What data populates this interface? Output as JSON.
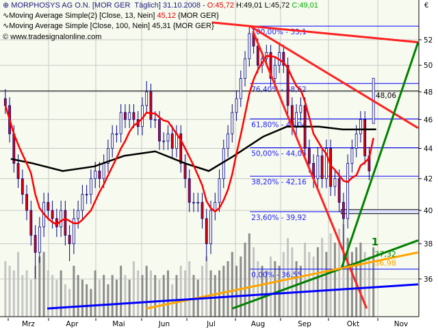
{
  "header": {
    "line1_name": "MORPHOSYS AG O.N. [MOR GER  Täglich] 31.10.2008 - ",
    "open": "O:45,72",
    "high": "H:49,01",
    "low": "L:45,72",
    "close": "C:49,01",
    "line2_label": "Moving Average Simple(2) [Close, 13, Nein] ",
    "line2_value": "45,12",
    "line2_suffix": " {MOR GER}",
    "line3_label": "Moving Average Simple [Close, 100, Nein] 45,31 {MOR GER}",
    "copyright": "© www.tradesignalonline.com",
    "currency": "€"
  },
  "chart_data": {
    "type": "candlestick",
    "symbol": "MORPHOSYS AG O.N.",
    "y_scale": "log",
    "ylim": [
      34.4,
      54
    ],
    "y_ticks": [
      36,
      38,
      40,
      42,
      44,
      46,
      48,
      50,
      52
    ],
    "y_tick_labels": [
      "36",
      "38",
      "40",
      "42",
      "44",
      "46",
      "48",
      "50",
      "52"
    ],
    "x_tick_labels": [
      "Mrz",
      "Apr",
      "Mai",
      "Jun",
      "Jul",
      "Aug",
      "Sep",
      "Okt",
      "Nov"
    ],
    "grid": true,
    "first_date": "2008-03-03",
    "last_date": "2008-10-31",
    "candles_ohlc": [
      [
        47.5,
        48.2,
        46.4,
        47
      ],
      [
        47,
        47.6,
        44.4,
        45
      ],
      [
        45,
        45.6,
        42.4,
        43
      ],
      [
        43,
        43.6,
        41.4,
        42
      ],
      [
        42,
        42.6,
        40.4,
        41
      ],
      [
        41,
        41.6,
        39.4,
        40
      ],
      [
        40,
        40.6,
        37.9,
        38.5
      ],
      [
        38.5,
        39.1,
        36,
        37.5
      ],
      [
        37.5,
        39.6,
        36.9,
        39
      ],
      [
        39,
        41.1,
        38.4,
        40.5
      ],
      [
        40.5,
        41.1,
        39.4,
        40
      ],
      [
        40,
        40.6,
        38.9,
        39.5
      ],
      [
        39.5,
        40.1,
        38.4,
        39
      ],
      [
        39,
        40.6,
        38.4,
        40
      ],
      [
        40,
        40.6,
        37.9,
        38.5
      ],
      [
        38.5,
        39.1,
        37,
        38
      ],
      [
        38,
        40.1,
        37.4,
        39.5
      ],
      [
        39.5,
        40.6,
        38.9,
        40
      ],
      [
        40,
        41.6,
        39.4,
        41
      ],
      [
        41,
        41.6,
        40.4,
        41
      ],
      [
        41,
        42.6,
        40.4,
        42
      ],
      [
        42,
        43.1,
        41.4,
        42.5
      ],
      [
        42.5,
        43.1,
        41.4,
        42
      ],
      [
        42,
        43.6,
        41.4,
        43
      ],
      [
        43,
        44.6,
        42.4,
        44
      ],
      [
        44,
        45.6,
        43.4,
        45
      ],
      [
        45,
        45.6,
        44.4,
        45
      ],
      [
        45,
        47.1,
        44.4,
        46.5
      ],
      [
        46.5,
        47.1,
        45.4,
        46
      ],
      [
        46,
        47.1,
        45.4,
        46.5
      ],
      [
        46.5,
        47.1,
        45.4,
        46
      ],
      [
        46,
        46.6,
        44.9,
        45.5
      ],
      [
        45.5,
        47.6,
        44.9,
        47
      ],
      [
        47,
        48.8,
        46.4,
        48
      ],
      [
        48,
        48.6,
        45.4,
        46
      ],
      [
        46,
        46.6,
        45.4,
        46
      ],
      [
        46,
        46.6,
        43.9,
        44.5
      ],
      [
        44.5,
        45.1,
        43.9,
        44.5
      ],
      [
        44.5,
        45.6,
        43.9,
        45
      ],
      [
        45,
        45.6,
        43.4,
        44
      ],
      [
        44,
        45.6,
        43.4,
        45
      ],
      [
        45,
        45.6,
        42.4,
        43
      ],
      [
        43,
        43.6,
        41.4,
        42
      ],
      [
        42,
        42.6,
        39.9,
        40.5
      ],
      [
        40.5,
        41.1,
        39.9,
        40.5
      ],
      [
        40.5,
        41.1,
        39.9,
        40.5
      ],
      [
        40.5,
        41.1,
        38.9,
        39.5
      ],
      [
        39.5,
        40.1,
        37,
        38
      ],
      [
        38,
        40.6,
        37.4,
        40
      ],
      [
        40,
        41.1,
        39.4,
        40.5
      ],
      [
        40.5,
        42.6,
        39.9,
        42
      ],
      [
        42,
        44.6,
        41.4,
        44
      ],
      [
        44,
        45.6,
        43.4,
        45
      ],
      [
        45,
        47.1,
        44.4,
        46.5
      ],
      [
        46.5,
        48.1,
        45.9,
        47.5
      ],
      [
        47.5,
        49.6,
        46.9,
        49
      ],
      [
        49,
        51.1,
        48.4,
        50.5
      ],
      [
        50.5,
        53.1,
        49.9,
        52.5
      ],
      [
        52.5,
        53.1,
        50.9,
        51.5
      ],
      [
        51.5,
        52.1,
        49.4,
        50
      ],
      [
        50,
        51.1,
        49.4,
        50.5
      ],
      [
        50.5,
        51.6,
        49.9,
        51
      ],
      [
        51,
        51.6,
        48.4,
        49
      ],
      [
        49,
        50.6,
        48.4,
        50
      ],
      [
        50,
        51.8,
        49.4,
        51
      ],
      [
        51,
        51.6,
        49.4,
        50
      ],
      [
        50,
        50.6,
        46.4,
        47
      ],
      [
        47,
        47.6,
        44.9,
        45.5
      ],
      [
        45.5,
        47.1,
        44.9,
        46.5
      ],
      [
        46.5,
        47.6,
        45.9,
        47
      ],
      [
        47,
        47.6,
        43.4,
        44
      ],
      [
        44,
        44.6,
        42.4,
        43
      ],
      [
        43,
        43.6,
        41.4,
        42
      ],
      [
        42,
        44.1,
        41.4,
        43.5
      ],
      [
        43.5,
        44.1,
        41.4,
        42
      ],
      [
        42,
        44.6,
        41.4,
        44
      ],
      [
        44,
        44.6,
        40.9,
        41.5
      ],
      [
        41.5,
        42.6,
        40.9,
        42
      ],
      [
        42,
        42.6,
        39.9,
        40.5
      ],
      [
        40.5,
        41.1,
        36.55,
        39.5
      ],
      [
        39.5,
        43.6,
        38.9,
        43
      ],
      [
        43,
        44.6,
        42.4,
        44
      ],
      [
        44,
        45.6,
        43.4,
        45
      ],
      [
        45,
        46.6,
        44.4,
        46
      ],
      [
        46,
        46.6,
        42.9,
        43.5
      ],
      [
        43.5,
        44.1,
        41.9,
        42.5
      ],
      [
        45.72,
        49.01,
        45.72,
        49.01
      ]
    ],
    "volume": [
      60,
      55,
      50,
      70,
      45,
      50,
      40,
      55,
      65,
      70,
      50,
      45,
      40,
      50,
      35,
      30,
      55,
      45,
      40,
      35,
      30,
      50,
      40,
      45,
      35,
      45,
      40,
      55,
      45,
      40,
      60,
      50,
      45,
      55,
      50,
      45,
      40,
      45,
      50,
      35,
      45,
      55,
      50,
      60,
      45,
      40,
      55,
      65,
      50,
      45,
      50,
      55,
      60,
      70,
      55,
      65,
      80,
      90,
      75,
      60,
      55,
      50,
      65,
      60,
      55,
      70,
      85,
      75,
      60,
      55,
      80,
      70,
      65,
      75,
      85,
      70,
      90,
      80,
      95,
      100,
      85,
      70,
      75,
      80,
      70,
      65,
      75
    ],
    "ma13": {
      "period": 13,
      "last_value": 45.12,
      "color": "#ff0000"
    },
    "ma100": {
      "period": 100,
      "last_value": 45.31,
      "color": "#000000",
      "points": [
        [
          "2008-03-03",
          43.3
        ],
        [
          "2008-03-20",
          43.0
        ],
        [
          "2008-04-10",
          42.5
        ],
        [
          "2008-04-30",
          42.8
        ],
        [
          "2008-05-20",
          43.5
        ],
        [
          "2008-06-10",
          43.8
        ],
        [
          "2008-06-30",
          43.0
        ],
        [
          "2008-07-15",
          42.5
        ],
        [
          "2008-07-31",
          43.5
        ],
        [
          "2008-08-20",
          44.8
        ],
        [
          "2008-09-05",
          45.5
        ],
        [
          "2008-09-25",
          45.5
        ],
        [
          "2008-10-10",
          45.3
        ],
        [
          "2008-10-31",
          45.31
        ]
      ]
    },
    "trend_lines": [
      {
        "color": "#ff2020",
        "from": [
          "2008-07-17",
          53.4
        ],
        "to": [
          "2008-11-27",
          51.8
        ]
      },
      {
        "color": "#ff2020",
        "from": [
          "2008-08-11",
          53.1
        ],
        "to": [
          "2008-11-27",
          45.4
        ]
      },
      {
        "color": "#ff2020",
        "from": [
          "2008-08-13",
          52.7
        ],
        "to": [
          "2008-10-25",
          34.4
        ]
      },
      {
        "color": "#008000",
        "from": [
          "2008-10-09",
          36.55
        ],
        "to": [
          "2008-11-27",
          51.8
        ]
      },
      {
        "color": "#008000",
        "from": [
          "2008-07-30",
          34.4
        ],
        "to": [
          "2008-11-27",
          38.2
        ]
      },
      {
        "color": "#ffa500",
        "from": [
          "2008-06-04",
          34.4
        ],
        "to": [
          "2008-11-27",
          37.5
        ]
      },
      {
        "color": "#0000ff",
        "from": [
          "2008-03-31",
          34.4
        ],
        "to": [
          "2008-11-27",
          35.7
        ]
      }
    ],
    "fibonacci": {
      "start_date": "2008-08-11",
      "color": "#0000ff",
      "levels": [
        {
          "price": 53.1,
          "label": "100,00% - 53,1"
        },
        {
          "price": 48.62,
          "label": "76,40% - 48,62"
        },
        {
          "price": 46.04,
          "label": "61,80% - 46,04"
        },
        {
          "price": 44.05,
          "label": "50,00% - 44,05"
        },
        {
          "price": 42.16,
          "label": "38,20% - 42,16"
        },
        {
          "price": 39.92,
          "label": "23,60% - 39,92"
        },
        {
          "price": 36.55,
          "label": "0,00% - 36,55"
        }
      ]
    },
    "price_line": {
      "price": 48.06,
      "label": "48,06"
    },
    "zone_box": {
      "from_date": "2008-10-09",
      "top": 40.05,
      "bottom": 39.8
    },
    "annotations": [
      {
        "text": "1",
        "color": "#008000",
        "date": "2008-10-28",
        "price": 37.9
      },
      {
        "text": "37,32",
        "color": "#008000",
        "date": "2008-10-30",
        "price": 37.25
      },
      {
        "text": "36,98",
        "color": "#ffa500",
        "date": "2008-10-30",
        "price": 36.9
      }
    ]
  }
}
